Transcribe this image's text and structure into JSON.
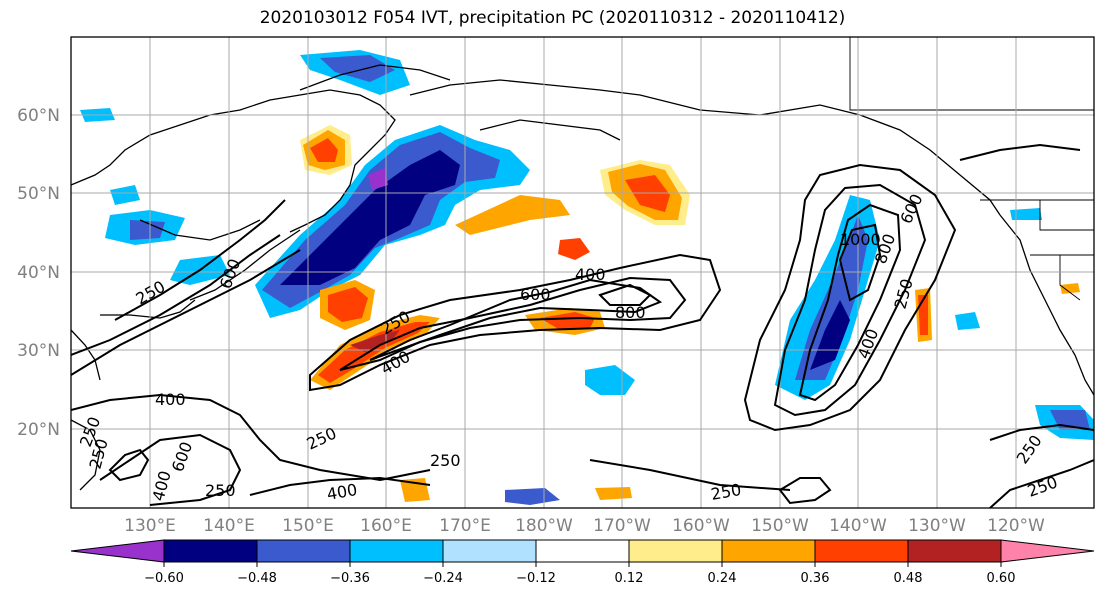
{
  "title": "2020103012 F054 IVT, precipitation PC (2020110312 - 2020110412)",
  "lat_ticks": [
    "60°N",
    "50°N",
    "40°N",
    "30°N",
    "20°N"
  ],
  "lon_ticks": [
    "130°E",
    "140°E",
    "150°E",
    "160°E",
    "170°E",
    "180°W",
    "170°W",
    "160°W",
    "150°W",
    "140°W",
    "130°W",
    "120°W"
  ],
  "colorbar": {
    "colors": [
      "#9932cc",
      "#000080",
      "#3a5acd",
      "#00bfff",
      "#b0e2ff",
      "#ffffff",
      "#ffec8b",
      "#ffa500",
      "#ff4000",
      "#b22222",
      "#ff82ab"
    ],
    "tick_labels": [
      "−0.60",
      "−0.48",
      "−0.36",
      "−0.24",
      "−0.12",
      "0.12",
      "0.24",
      "0.36",
      "0.48",
      "0.60"
    ]
  },
  "contour_labels": [
    "250",
    "400",
    "600",
    "800",
    "1000",
    "250",
    "400",
    "600",
    "800",
    "250",
    "400",
    "600",
    "250",
    "400",
    "250",
    "250",
    "400",
    "600",
    "250",
    "400",
    "250",
    "250",
    "250",
    "250"
  ]
}
